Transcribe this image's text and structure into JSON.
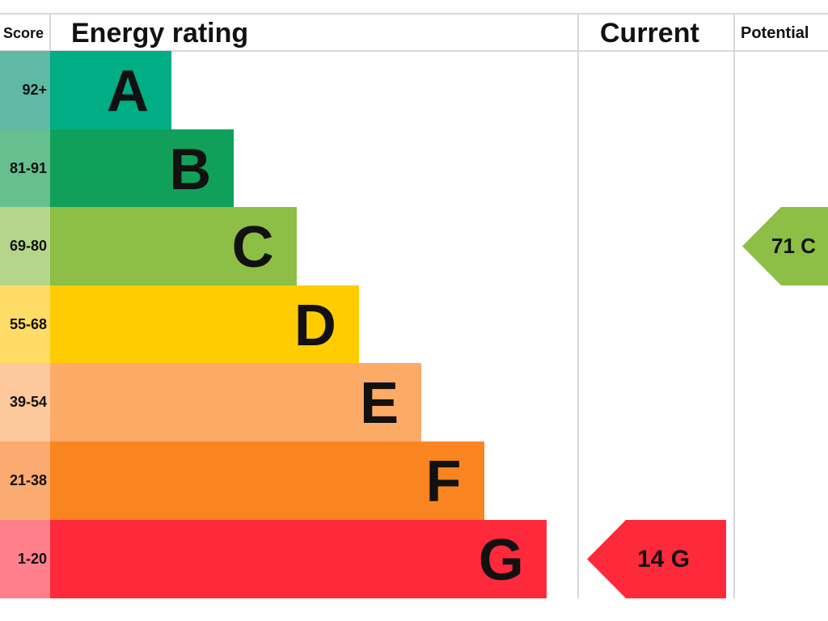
{
  "chart_data": {
    "type": "bar",
    "title": "",
    "headers": {
      "score": "Score",
      "rating": "Energy rating",
      "current": "Current",
      "potential": "Potential"
    },
    "bands": [
      {
        "letter": "A",
        "range": "92+",
        "color": "#00ad84",
        "tint": "#5fb9a5"
      },
      {
        "letter": "B",
        "range": "81-91",
        "color": "#11a05a",
        "tint": "#66bf8f"
      },
      {
        "letter": "C",
        "range": "69-80",
        "color": "#8dbe45",
        "tint": "#b5d68a"
      },
      {
        "letter": "D",
        "range": "55-68",
        "color": "#ffcc00",
        "tint": "#ffdc66"
      },
      {
        "letter": "E",
        "range": "39-54",
        "color": "#fcaa65",
        "tint": "#fdc99c"
      },
      {
        "letter": "F",
        "range": "21-38",
        "color": "#f98520",
        "tint": "#fbaa72"
      },
      {
        "letter": "G",
        "range": "1-20",
        "color": "#fe2a3b",
        "tint": "#ff808c"
      }
    ],
    "current": {
      "value": 14,
      "band": "G",
      "label": "14  G",
      "color": "#fe2a3b"
    },
    "potential": {
      "value": 71,
      "band": "C",
      "label": "71  C",
      "color": "#8dbe45"
    }
  }
}
